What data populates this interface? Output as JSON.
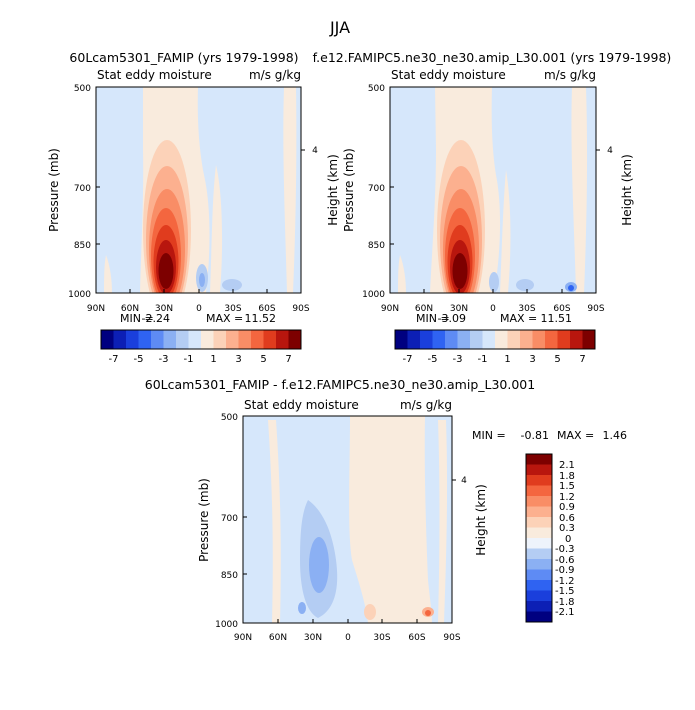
{
  "title": "JJA",
  "palette_diverging": [
    "#000080",
    "#0c1fb5",
    "#1a3fdc",
    "#2f63f2",
    "#5e8bf4",
    "#8bb0f3",
    "#b4cdf3",
    "#d6e7fb",
    "#f9ebdd",
    "#fcd2b8",
    "#fcb08f",
    "#f98d66",
    "#f4663f",
    "#e03c1e",
    "#b8160e",
    "#7d0000"
  ],
  "chart_data": [
    {
      "type": "heatmap",
      "id": "panel1",
      "main_title": "60Lcam5301_FAMIP (yrs 1979-1998)",
      "left_label": "Stat eddy moisture",
      "right_label": "m/s g/kg",
      "ylabel": "Pressure (mb)",
      "ylabel_right": "Height (km)",
      "yticks": [
        "500",
        "700",
        "850",
        "1000"
      ],
      "ytick_values": [
        500,
        700,
        850,
        1000
      ],
      "ylim": [
        1000,
        500
      ],
      "right_tick": "4",
      "right_tick_value": 4,
      "xticks": [
        "90N",
        "60N",
        "30N",
        "0",
        "30S",
        "60S",
        "90S"
      ],
      "xtick_values": [
        90,
        60,
        30,
        0,
        -30,
        -60,
        -90
      ],
      "xlim": [
        90,
        -90
      ],
      "min_label": "MIN =",
      "min": "-2.24",
      "max_label": "MAX =",
      "max": "11.52",
      "colorbar_labels": [
        "-7",
        "-5",
        "-3",
        "-1",
        "1",
        "3",
        "5",
        "7"
      ],
      "peak": {
        "lat": 32,
        "p": 920,
        "value": 11.5
      },
      "trough": {
        "lat": 5,
        "p": 960,
        "value": -2.2
      }
    },
    {
      "type": "heatmap",
      "id": "panel2",
      "main_title": "f.e12.FAMIPC5.ne30_ne30.amip_L30.001 (yrs 1979-1998)",
      "left_label": "Stat eddy moisture",
      "right_label": "m/s g/kg",
      "ylabel": "Pressure (mb)",
      "ylabel_right": "Height (km)",
      "yticks": [
        "500",
        "700",
        "850",
        "1000"
      ],
      "ytick_values": [
        500,
        700,
        850,
        1000
      ],
      "ylim": [
        1000,
        500
      ],
      "right_tick": "4",
      "right_tick_value": 4,
      "xticks": [
        "90N",
        "60N",
        "30N",
        "0",
        "30S",
        "60S",
        "90S"
      ],
      "xtick_values": [
        90,
        60,
        30,
        0,
        -30,
        -60,
        -90
      ],
      "xlim": [
        90,
        -90
      ],
      "min_label": "MIN =",
      "min": "-3.09",
      "max_label": "MAX =",
      "max": "11.51",
      "colorbar_labels": [
        "-7",
        "-5",
        "-3",
        "-1",
        "1",
        "3",
        "5",
        "7"
      ],
      "peak": {
        "lat": 32,
        "p": 920,
        "value": 11.5
      },
      "trough": {
        "lat": -65,
        "p": 980,
        "value": -3.1
      }
    },
    {
      "type": "heatmap",
      "id": "panel3",
      "main_title": "60Lcam5301_FAMIP - f.e12.FAMIPC5.ne30_ne30.amip_L30.001",
      "left_label": "Stat eddy moisture",
      "right_label": "m/s g/kg",
      "ylabel": "Pressure (mb)",
      "ylabel_right": "Height (km)",
      "yticks": [
        "500",
        "700",
        "850",
        "1000"
      ],
      "ytick_values": [
        500,
        700,
        850,
        1000
      ],
      "ylim": [
        1000,
        500
      ],
      "right_tick": "4",
      "right_tick_value": 4,
      "xticks": [
        "90N",
        "60N",
        "30N",
        "0",
        "30S",
        "60S",
        "90S"
      ],
      "xtick_values": [
        90,
        60,
        30,
        0,
        -30,
        -60,
        -90
      ],
      "xlim": [
        90,
        -90
      ],
      "min_label": "MIN =",
      "min": "-0.81",
      "max_label": "MAX =",
      "max": "1.46",
      "colorbar_labels": [
        "2.1",
        "1.8",
        "1.5",
        "1.2",
        "0.9",
        "0.6",
        "0.3",
        "0",
        "-0.3",
        "-0.6",
        "-0.9",
        "-1.2",
        "-1.5",
        "-1.8",
        "-2.1"
      ],
      "colorbar_colors": [
        "#7d0000",
        "#b8160e",
        "#e03c1e",
        "#f4663f",
        "#f98d66",
        "#fcb08f",
        "#fcd2b8",
        "#f9ebdd",
        "#eef3fb",
        "#b4cdf3",
        "#8bb0f3",
        "#5e8bf4",
        "#2f63f2",
        "#1a3fdc",
        "#0c1fb5",
        "#000080"
      ]
    }
  ]
}
